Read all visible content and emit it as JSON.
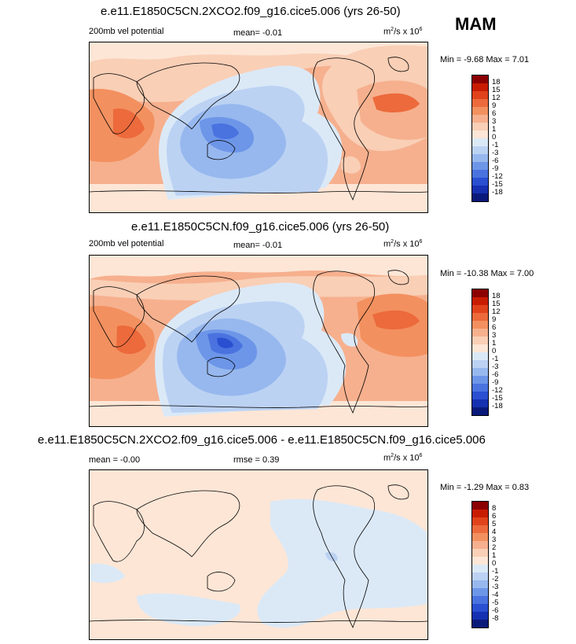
{
  "season": "MAM",
  "units_base": "m",
  "units_rest": "/s x 10",
  "panels": [
    {
      "title": "e.e11.E1850C5CN.2XCO2.f09_g16.cice5.006 (yrs 26-50)",
      "left_label": "200mb vel potential",
      "center_label": "mean=  -0.01",
      "minmax": "Min =  -9.68 Max =  7.01",
      "colorbar": {
        "labels": [
          "18",
          "15",
          "12",
          "9",
          "6",
          "3",
          "1",
          "0",
          "-1",
          "-3",
          "-6",
          "-9",
          "-12",
          "-15",
          "-18"
        ],
        "colors": [
          "#8b0000",
          "#c81c00",
          "#e0431b",
          "#ec6a3c",
          "#f3905f",
          "#f6b08e",
          "#f9cfb6",
          "#fde6d6",
          "#dbe9f7",
          "#bcd2f3",
          "#97b8ee",
          "#6d96e8",
          "#4a73e0",
          "#2a4fd0",
          "#1530b0",
          "#0a1a7a"
        ]
      }
    },
    {
      "title": "e.e11.E1850C5CN.f09_g16.cice5.006 (yrs 26-50)",
      "left_label": "200mb vel potential",
      "center_label": "mean=  -0.01",
      "minmax": "Min = -10.38 Max =  7.00",
      "colorbar": {
        "labels": [
          "18",
          "15",
          "12",
          "9",
          "6",
          "3",
          "1",
          "0",
          "-1",
          "-3",
          "-6",
          "-9",
          "-12",
          "-15",
          "-18"
        ],
        "colors": [
          "#8b0000",
          "#c81c00",
          "#e0431b",
          "#ec6a3c",
          "#f3905f",
          "#f6b08e",
          "#f9cfb6",
          "#fde6d6",
          "#dbe9f7",
          "#bcd2f3",
          "#97b8ee",
          "#6d96e8",
          "#4a73e0",
          "#2a4fd0",
          "#1530b0",
          "#0a1a7a"
        ]
      }
    },
    {
      "title": "e.e11.E1850C5CN.2XCO2.f09_g16.cice5.006 - e.e11.E1850C5CN.f09_g16.cice5.006",
      "left_label": "mean =  -0.00",
      "center_label": "rmse =   0.39",
      "minmax": "Min =  -1.29 Max =  0.83",
      "colorbar": {
        "labels": [
          "8",
          "6",
          "5",
          "4",
          "3",
          "2",
          "1",
          "0",
          "-1",
          "-2",
          "-3",
          "-4",
          "-5",
          "-6",
          "-8"
        ],
        "colors": [
          "#8b0000",
          "#c81c00",
          "#e0431b",
          "#ec6a3c",
          "#f3905f",
          "#f6b08e",
          "#f9cfb6",
          "#fde6d6",
          "#dbe9f7",
          "#bcd2f3",
          "#97b8ee",
          "#6d96e8",
          "#4a73e0",
          "#2a4fd0",
          "#1530b0",
          "#0a1a7a"
        ]
      }
    }
  ]
}
